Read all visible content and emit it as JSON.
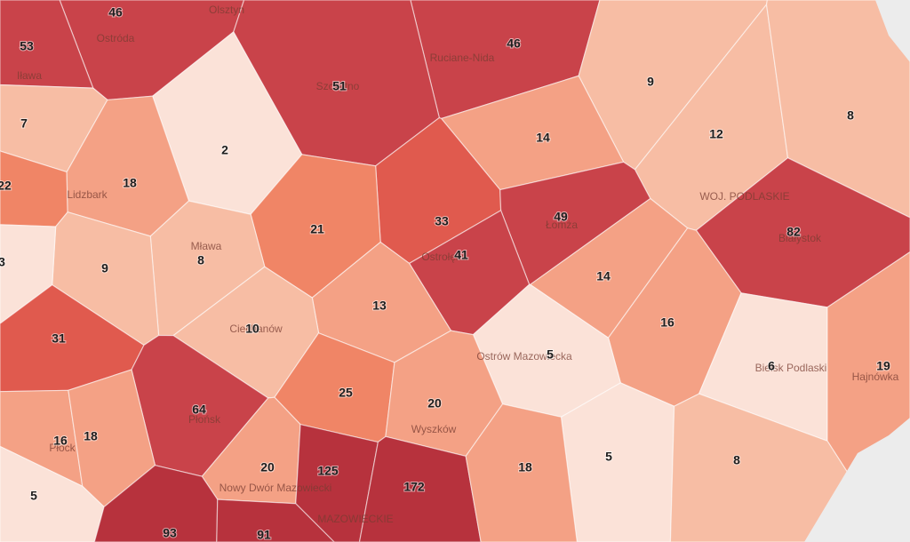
{
  "regions": [
    {
      "value": 46
    },
    {
      "value": 53
    },
    {
      "value": 46
    },
    {
      "value": 51
    },
    {
      "value": 9
    },
    {
      "value": 7
    },
    {
      "value": 14
    },
    {
      "value": 12
    },
    {
      "value": 8
    },
    {
      "value": 2
    },
    {
      "value": 22
    },
    {
      "value": 18
    },
    {
      "value": 33
    },
    {
      "value": 49
    },
    {
      "value": 21
    },
    {
      "value": 82
    },
    {
      "value": 8
    },
    {
      "value": 9
    },
    {
      "value": 41
    },
    {
      "value": 3
    },
    {
      "value": 14
    },
    {
      "value": 13
    },
    {
      "value": 10
    },
    {
      "value": 16
    },
    {
      "value": 31
    },
    {
      "value": 5
    },
    {
      "value": 6
    },
    {
      "value": 19
    },
    {
      "value": 25
    },
    {
      "value": 20
    },
    {
      "value": 64
    },
    {
      "value": 16
    },
    {
      "value": 18
    },
    {
      "value": 5
    },
    {
      "value": 8
    },
    {
      "value": 20
    },
    {
      "value": 125
    },
    {
      "value": 172
    },
    {
      "value": 18
    },
    {
      "value": 5
    },
    {
      "value": 93
    },
    {
      "value": 91
    }
  ],
  "places": [
    "Olsztyn",
    "Ostróda",
    "Ruciane-Nida",
    "Szczytno",
    "Iława",
    "Lidzbark",
    "WOJ. PODLASKIE",
    "Łomża",
    "Białystok",
    "Ostrołęka",
    "Mława",
    "Ciechanów",
    "Ostrów Mazowiecka",
    "Bielsk Podlaski",
    "Hajnówka",
    "Płońsk",
    "Płock",
    "Wyszków",
    "Nowy Dwór Mazowiecki",
    "MAZOWIECKIE"
  ]
}
